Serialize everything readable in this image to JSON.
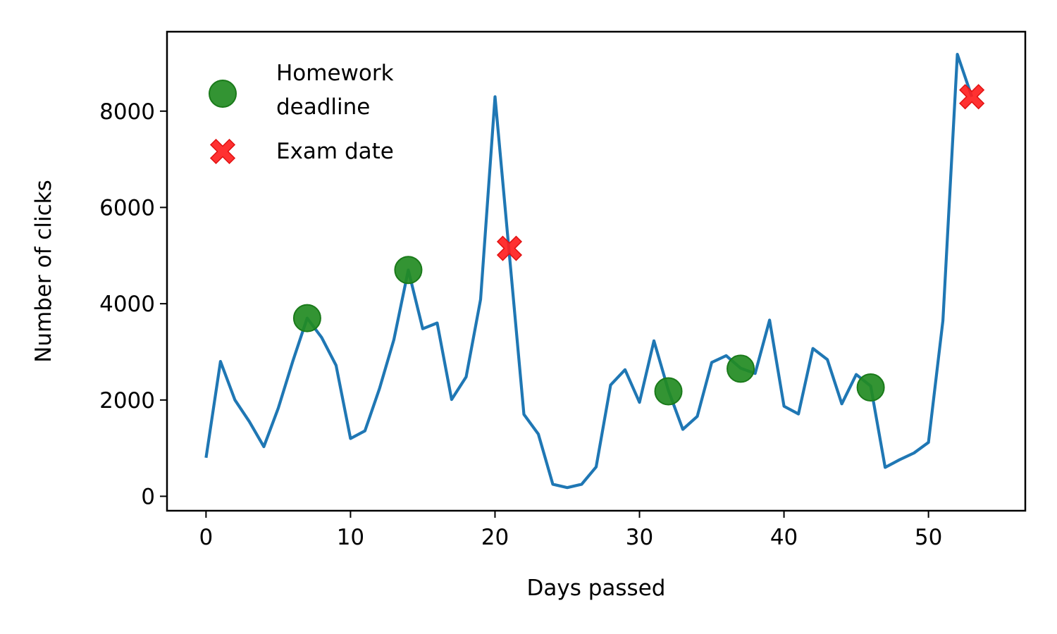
{
  "chart_data": {
    "type": "line",
    "title": "",
    "xlabel": "Days passed",
    "ylabel": "Number of clicks",
    "xlim": [
      -2.7,
      56.7
    ],
    "ylim": [
      -300,
      9650
    ],
    "xticks": [
      0,
      10,
      20,
      30,
      40,
      50
    ],
    "yticks": [
      0,
      2000,
      4000,
      6000,
      8000
    ],
    "grid": false,
    "legend_position": "top-left",
    "series": [
      {
        "type": "line",
        "color": "#1f77b4",
        "x": [
          0,
          1,
          2,
          3,
          4,
          5,
          6,
          7,
          8,
          9,
          10,
          11,
          12,
          13,
          14,
          15,
          16,
          17,
          18,
          19,
          20,
          21,
          22,
          23,
          24,
          25,
          26,
          27,
          28,
          29,
          30,
          31,
          32,
          33,
          34,
          35,
          36,
          37,
          38,
          39,
          40,
          41,
          42,
          43,
          44,
          45,
          46,
          47,
          48,
          49,
          50,
          51,
          52,
          53
        ],
        "y": [
          800,
          2800,
          2000,
          1550,
          1030,
          1830,
          2800,
          3700,
          3300,
          2720,
          1200,
          1360,
          2230,
          3250,
          4700,
          3480,
          3600,
          2010,
          2480,
          4090,
          8300,
          5000,
          1700,
          1290,
          250,
          180,
          250,
          610,
          2310,
          2630,
          1950,
          3230,
          2200,
          1390,
          1660,
          2780,
          2920,
          2660,
          2550,
          3660,
          1870,
          1710,
          3070,
          2840,
          1920,
          2530,
          2290,
          600,
          760,
          900,
          1120,
          3650,
          9180,
          8300
        ]
      },
      {
        "name": "Homework\ndeadline",
        "type": "scatter",
        "marker": "circle",
        "color": "#228b22",
        "x": [
          7,
          14,
          32,
          37,
          46
        ],
        "y": [
          3700,
          4700,
          2180,
          2650,
          2260
        ]
      },
      {
        "name": "Exam date",
        "type": "scatter",
        "marker": "x",
        "color": "#ff2020",
        "x": [
          21,
          53
        ],
        "y": [
          5150,
          8300
        ]
      }
    ],
    "legend": [
      {
        "lines": [
          "Homework",
          "deadline"
        ],
        "marker": "circle",
        "color": "#228b22"
      },
      {
        "lines": [
          "Exam date"
        ],
        "marker": "x",
        "color": "#ff2020"
      }
    ]
  }
}
